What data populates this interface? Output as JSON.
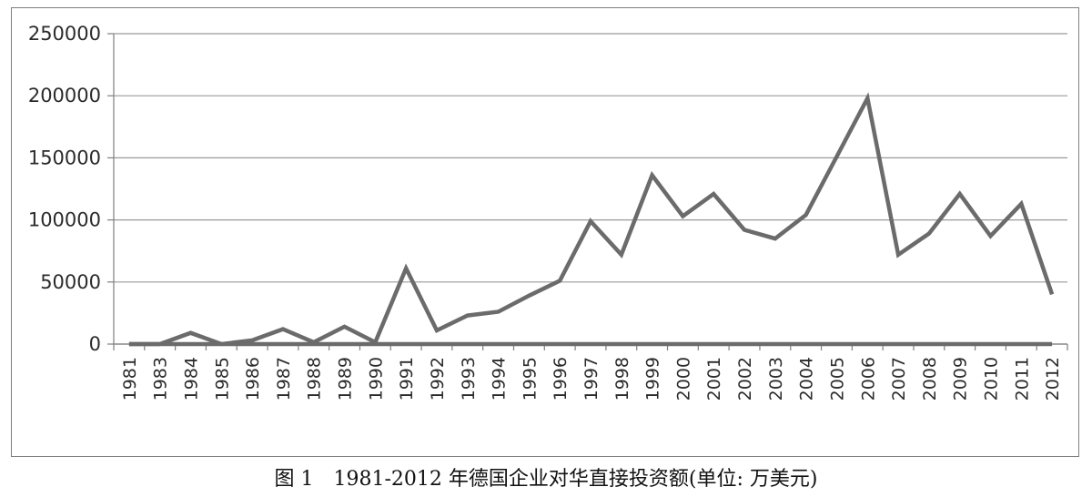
{
  "caption": "图 1　1981-2012 年德国企业对华直接投资额(单位: 万美元)",
  "chart_data": {
    "type": "line",
    "title": "",
    "xlabel": "",
    "ylabel": "",
    "categories": [
      "1981",
      "1983",
      "1984",
      "1985",
      "1986",
      "1987",
      "1988",
      "1989",
      "1990",
      "1991",
      "1992",
      "1993",
      "1994",
      "1995",
      "1996",
      "1997",
      "1998",
      "1999",
      "2000",
      "2001",
      "2002",
      "2003",
      "2004",
      "2005",
      "2006",
      "2007",
      "2008",
      "2009",
      "2010",
      "2011",
      "2012"
    ],
    "series": [
      {
        "name": "",
        "color": "#6b6b6b",
        "values": [
          0,
          0,
          9000,
          0,
          3000,
          12000,
          1500,
          14000,
          1500,
          61000,
          11000,
          23000,
          26000,
          39000,
          51000,
          99000,
          72000,
          136000,
          103000,
          121000,
          92000,
          85000,
          104000,
          151000,
          198000,
          72000,
          89000,
          121000,
          87000,
          113000,
          40000
        ]
      },
      {
        "name": "",
        "color": "#6b6b6b",
        "values": [
          0,
          0,
          0,
          0,
          0,
          0,
          0,
          0,
          0,
          0,
          0,
          0,
          0,
          0,
          0,
          0,
          0,
          0,
          0,
          0,
          0,
          0,
          0,
          0,
          0,
          0,
          0,
          0,
          0,
          0,
          0
        ]
      }
    ],
    "yticks": [
      "0",
      "50000",
      "100000",
      "150000",
      "200000",
      "250000"
    ],
    "ylim": [
      0,
      250000
    ],
    "grid": true,
    "legend": "none"
  }
}
